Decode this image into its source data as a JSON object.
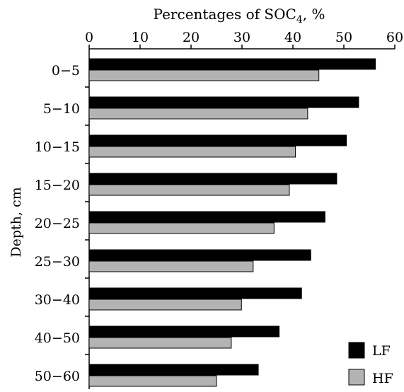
{
  "chart_data": {
    "type": "bar",
    "orientation": "horizontal",
    "title": {
      "main": "Percentages of  SOC",
      "sub": "4",
      "suffix": ", %"
    },
    "ylabel": "Depth, cm",
    "xlim": [
      0,
      60
    ],
    "xticks": [
      0,
      10,
      20,
      30,
      40,
      50,
      60
    ],
    "categories": [
      "0−5",
      "5−10",
      "10−15",
      "15−20",
      "20−25",
      "25−30",
      "30−40",
      "40−50",
      "50−60"
    ],
    "series": [
      {
        "name": "LF",
        "color": "#000000",
        "values": [
          56.2,
          52.9,
          50.5,
          48.6,
          46.3,
          43.5,
          41.7,
          37.3,
          33.2
        ]
      },
      {
        "name": "HF",
        "color": "#b3b3b3",
        "values": [
          45.1,
          42.9,
          40.5,
          39.3,
          36.3,
          32.2,
          29.9,
          27.9,
          25.0
        ]
      }
    ],
    "legend_position": "bottom-right",
    "grid": false
  }
}
